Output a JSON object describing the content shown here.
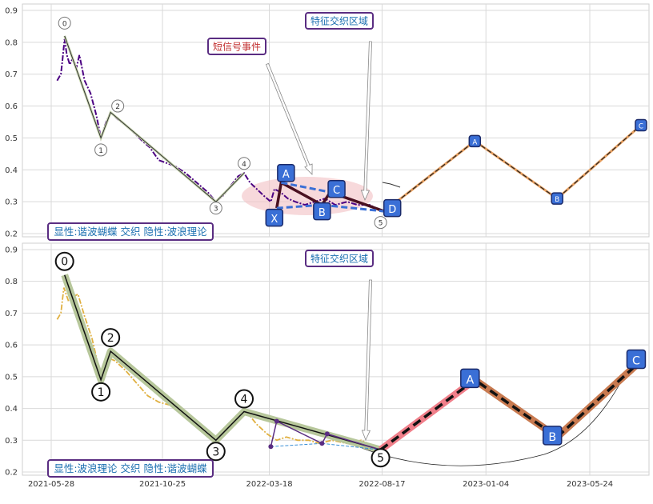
{
  "chart_data": [
    {
      "type": "line",
      "panel": "top",
      "ylim": [
        0.19,
        0.92
      ],
      "yticks": [
        "0.2",
        "0.3",
        "0.4",
        "0.5",
        "0.6",
        "0.7",
        "0.8",
        "0.9"
      ],
      "ytick_values": [
        0.2,
        0.3,
        0.4,
        0.5,
        0.6,
        0.7,
        0.8,
        0.9
      ],
      "grid": true,
      "colors": {
        "price": "#4b0082",
        "zigzag": "#3a3a3a",
        "harmonic": "#1f3fa8",
        "projection": "#e8a060",
        "ellipse": "#f3c4c8",
        "box_border": "#5a2d82",
        "label_blue": "#3a6fd6"
      },
      "price_series": [
        [
          "2021-06-05",
          0.68
        ],
        [
          "2021-06-10",
          0.7
        ],
        [
          "2021-06-12",
          0.74
        ],
        [
          "2021-06-15",
          0.81
        ],
        [
          "2021-06-18",
          0.76
        ],
        [
          "2021-06-22",
          0.73
        ],
        [
          "2021-06-26",
          0.75
        ],
        [
          "2021-07-01",
          0.72
        ],
        [
          "2021-07-05",
          0.76
        ],
        [
          "2021-07-12",
          0.68
        ],
        [
          "2021-07-20",
          0.64
        ],
        [
          "2021-07-28",
          0.57
        ],
        [
          "2021-08-03",
          0.5
        ],
        [
          "2021-08-10",
          0.55
        ],
        [
          "2021-08-16",
          0.58
        ],
        [
          "2021-08-25",
          0.56
        ],
        [
          "2021-09-05",
          0.54
        ],
        [
          "2021-09-15",
          0.52
        ],
        [
          "2021-09-28",
          0.49
        ],
        [
          "2021-10-08",
          0.47
        ],
        [
          "2021-10-20",
          0.43
        ],
        [
          "2021-11-01",
          0.42
        ],
        [
          "2021-11-12",
          0.41
        ],
        [
          "2021-11-25",
          0.39
        ],
        [
          "2021-12-05",
          0.37
        ],
        [
          "2021-12-15",
          0.35
        ],
        [
          "2021-12-25",
          0.33
        ],
        [
          "2022-01-05",
          0.3
        ],
        [
          "2022-01-15",
          0.32
        ],
        [
          "2022-01-25",
          0.35
        ],
        [
          "2022-02-04",
          0.38
        ],
        [
          "2022-02-12",
          0.39
        ],
        [
          "2022-02-20",
          0.36
        ],
        [
          "2022-03-01",
          0.34
        ],
        [
          "2022-03-10",
          0.32
        ],
        [
          "2022-03-20",
          0.3
        ],
        [
          "2022-03-25",
          0.34
        ],
        [
          "2022-04-02",
          0.33
        ],
        [
          "2022-04-12",
          0.31
        ],
        [
          "2022-04-22",
          0.3
        ],
        [
          "2022-05-05",
          0.29
        ],
        [
          "2022-05-18",
          0.3
        ],
        [
          "2022-06-01",
          0.31
        ],
        [
          "2022-06-15",
          0.29
        ],
        [
          "2022-07-01",
          0.3
        ],
        [
          "2022-07-15",
          0.29
        ],
        [
          "2022-08-01",
          0.29
        ],
        [
          "2022-08-15",
          0.27
        ]
      ],
      "wave_points": [
        {
          "label": "0",
          "date": "2021-06-15",
          "y": 0.82
        },
        {
          "label": "1",
          "date": "2021-08-03",
          "y": 0.5
        },
        {
          "label": "2",
          "date": "2021-08-16",
          "y": 0.58
        },
        {
          "label": "3",
          "date": "2022-01-05",
          "y": 0.3
        },
        {
          "label": "4",
          "date": "2022-02-12",
          "y": 0.39
        },
        {
          "label": "5",
          "date": "2022-08-15",
          "y": 0.25
        }
      ],
      "harmonic_points": [
        {
          "label": "X",
          "date": "2022-03-28",
          "y": 0.28
        },
        {
          "label": "A",
          "date": "2022-04-03",
          "y": 0.36
        },
        {
          "label": "B",
          "date": "2022-05-28",
          "y": 0.29
        },
        {
          "label": "C",
          "date": "2022-06-08",
          "y": 0.33
        },
        {
          "label": "D",
          "date": "2022-08-20",
          "y": 0.27
        }
      ],
      "projection_points": [
        {
          "label": "",
          "date": "2022-08-20",
          "y": 0.27
        },
        {
          "label": "A",
          "date": "2022-12-20",
          "y": 0.49
        },
        {
          "label": "B",
          "date": "2023-04-10",
          "y": 0.31
        },
        {
          "label": "C",
          "date": "2023-08-01",
          "y": 0.54
        }
      ],
      "annotations": {
        "feature_zone": "特征交织区域",
        "short_signal": "短信号事件",
        "caption": "显性:谐波蝴蝶 交织 隐性:波浪理论"
      }
    },
    {
      "type": "line",
      "panel": "bottom",
      "ylim": [
        0.19,
        0.92
      ],
      "yticks": [
        "0.2",
        "0.3",
        "0.4",
        "0.5",
        "0.6",
        "0.7",
        "0.8",
        "0.9"
      ],
      "ytick_values": [
        0.2,
        0.3,
        0.4,
        0.5,
        0.6,
        0.7,
        0.8,
        0.9
      ],
      "xticks": [
        {
          "label": "2021-05-28",
          "date": "2021-05-28"
        },
        {
          "label": "2021-10-25",
          "date": "2021-10-25"
        },
        {
          "label": "2022-03-18",
          "date": "2022-03-18"
        },
        {
          "label": "2022-08-17",
          "date": "2022-08-17"
        },
        {
          "label": "2023-01-04",
          "date": "2023-01-04"
        },
        {
          "label": "2023-05-24",
          "date": "2023-05-24"
        }
      ],
      "grid": true,
      "colors": {
        "price": "#e0b040",
        "zigzag": "#111111",
        "zig_glow": "#b7c79b",
        "harmonic": "#5a2d82",
        "proj_red": "#f07f8a",
        "proj_brown": "#c87a50",
        "label_blue": "#3a6fd6"
      },
      "price_series": [
        [
          "2021-06-05",
          0.68
        ],
        [
          "2021-06-10",
          0.7
        ],
        [
          "2021-06-14",
          0.78
        ],
        [
          "2021-06-20",
          0.74
        ],
        [
          "2021-06-26",
          0.75
        ],
        [
          "2021-07-03",
          0.76
        ],
        [
          "2021-07-12",
          0.69
        ],
        [
          "2021-07-22",
          0.62
        ],
        [
          "2021-08-03",
          0.5
        ],
        [
          "2021-08-12",
          0.56
        ],
        [
          "2021-08-22",
          0.55
        ],
        [
          "2021-09-05",
          0.52
        ],
        [
          "2021-09-20",
          0.48
        ],
        [
          "2021-10-05",
          0.44
        ],
        [
          "2021-10-20",
          0.42
        ],
        [
          "2021-11-05",
          0.41
        ],
        [
          "2021-11-20",
          0.39
        ],
        [
          "2021-12-10",
          0.36
        ],
        [
          "2021-12-25",
          0.33
        ],
        [
          "2022-01-05",
          0.3
        ],
        [
          "2022-01-20",
          0.33
        ],
        [
          "2022-02-05",
          0.37
        ],
        [
          "2022-02-15",
          0.39
        ],
        [
          "2022-03-01",
          0.35
        ],
        [
          "2022-03-15",
          0.32
        ],
        [
          "2022-03-28",
          0.3
        ],
        [
          "2022-04-10",
          0.31
        ],
        [
          "2022-04-25",
          0.3
        ],
        [
          "2022-05-10",
          0.3
        ],
        [
          "2022-05-25",
          0.29
        ],
        [
          "2022-06-10",
          0.3
        ],
        [
          "2022-07-01",
          0.29
        ],
        [
          "2022-07-20",
          0.3
        ],
        [
          "2022-08-15",
          0.27
        ]
      ],
      "wave_points": [
        {
          "label": "0",
          "date": "2021-06-15",
          "y": 0.82
        },
        {
          "label": "1",
          "date": "2021-08-03",
          "y": 0.49
        },
        {
          "label": "2",
          "date": "2021-08-16",
          "y": 0.58
        },
        {
          "label": "3",
          "date": "2022-01-05",
          "y": 0.3
        },
        {
          "label": "4",
          "date": "2022-02-12",
          "y": 0.39
        },
        {
          "label": "5",
          "date": "2022-08-15",
          "y": 0.27
        }
      ],
      "harmonic_points": [
        {
          "label": "",
          "date": "2022-03-20",
          "y": 0.28
        },
        {
          "label": "",
          "date": "2022-03-28",
          "y": 0.36
        },
        {
          "label": "",
          "date": "2022-05-28",
          "y": 0.29
        },
        {
          "label": "",
          "date": "2022-06-04",
          "y": 0.32
        },
        {
          "label": "",
          "date": "2022-08-15",
          "y": 0.27
        }
      ],
      "projection_points": [
        {
          "label": "",
          "date": "2022-08-15",
          "y": 0.27
        },
        {
          "label": "A",
          "date": "2022-12-20",
          "y": 0.49
        },
        {
          "label": "B",
          "date": "2023-04-10",
          "y": 0.31
        },
        {
          "label": "C",
          "date": "2023-08-01",
          "y": 0.55
        }
      ],
      "annotations": {
        "feature_zone": "特征交织区域",
        "caption": "显性:波浪理论 交织 隐性:谐波蝴蝶"
      }
    }
  ]
}
